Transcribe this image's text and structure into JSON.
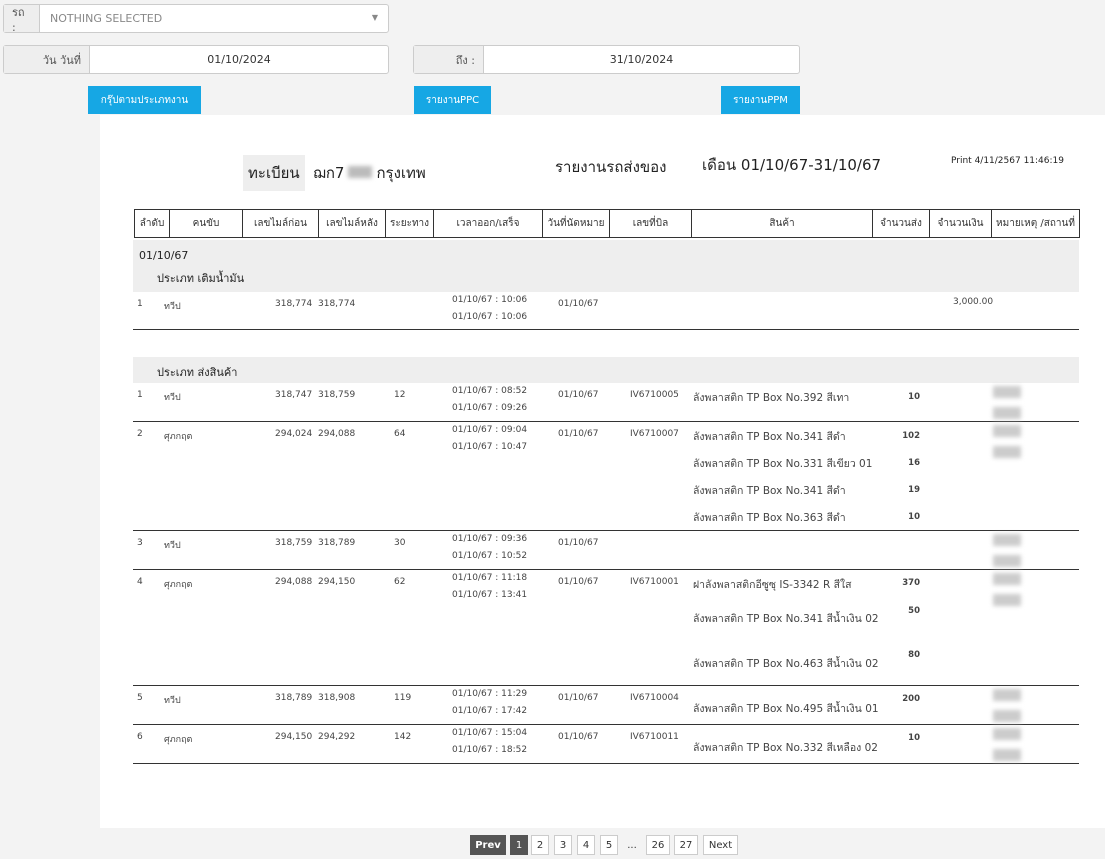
{
  "filters": {
    "car_label": "รถ :",
    "car_value": "NOTHING SELECTED",
    "from_label": "วัน วันที่",
    "from_value": "01/10/2024",
    "to_label": "ถึง :",
    "to_value": "31/10/2024"
  },
  "buttons": {
    "group": "กรุ๊ปตามประเภทงาน",
    "ppc": "รายงานPPC",
    "ppm": "รายงานPPM"
  },
  "report": {
    "reg_label": "ทะเบียน",
    "plate": "ฌก7",
    "province": "กรุงเทพ",
    "title": "รายงานรถส่งของ",
    "month": "เดือน 01/10/67-31/10/67",
    "print": "Print 4/11/2567 11:46:19",
    "columns": [
      "ลำดับ",
      "คนขับ",
      "เลขไมล์ก่อน",
      "เลขไมล์หลัง",
      "ระยะทาง",
      "เวลาออก/เสร็จ",
      "วันที่นัดหมาย",
      "เลขที่บิล",
      "สินค้า",
      "จำนวนส่ง",
      "จำนวนเงิน",
      "หมายเหตุ /สถานที่"
    ],
    "date": "01/10/67",
    "groups": [
      {
        "type": "ประเภท เติมน้ำมัน",
        "trips": [
          {
            "no": "1",
            "driver": "ทวีป",
            "mile_before": "318,774",
            "mile_after": "318,774",
            "distance": "",
            "out": "01/10/67 : 10:06",
            "done": "01/10/67 : 10:06",
            "appt": "01/10/67",
            "bill": "",
            "amount": "3,000.00",
            "items": []
          }
        ]
      },
      {
        "type": "ประเภท ส่งสินค้า",
        "trips": [
          {
            "no": "1",
            "driver": "ทวีป",
            "mile_before": "318,747",
            "mile_after": "318,759",
            "distance": "12",
            "out": "01/10/67 : 08:52",
            "done": "01/10/67 : 09:26",
            "appt": "01/10/67",
            "bill": "IV6710005",
            "amount": "",
            "items": [
              {
                "name": "ลังพลาสติก TP Box No.392 สีเทา",
                "qty": "10"
              }
            ]
          },
          {
            "no": "2",
            "driver": "ศุภกฤต",
            "mile_before": "294,024",
            "mile_after": "294,088",
            "distance": "64",
            "out": "01/10/67 : 09:04",
            "done": "01/10/67 : 10:47",
            "appt": "01/10/67",
            "bill": "IV6710007",
            "amount": "",
            "items": [
              {
                "name": "ลังพลาสติก TP Box No.341 สีดำ",
                "qty": "102"
              },
              {
                "name": "ลังพลาสติก TP Box No.331 สีเขียว 01",
                "qty": "16"
              },
              {
                "name": "ลังพลาสติก TP Box No.341 สีดำ",
                "qty": "19"
              },
              {
                "name": "ลังพลาสติก TP Box No.363 สีดำ",
                "qty": "10"
              }
            ]
          },
          {
            "no": "3",
            "driver": "ทวีป",
            "mile_before": "318,759",
            "mile_after": "318,789",
            "distance": "30",
            "out": "01/10/67 : 09:36",
            "done": "01/10/67 : 10:52",
            "appt": "01/10/67",
            "bill": "",
            "amount": "",
            "items": []
          },
          {
            "no": "4",
            "driver": "ศุภกฤต",
            "mile_before": "294,088",
            "mile_after": "294,150",
            "distance": "62",
            "out": "01/10/67 : 11:18",
            "done": "01/10/67 : 13:41",
            "appt": "01/10/67",
            "bill": "IV6710001",
            "amount": "",
            "items": [
              {
                "name": "ฝาลังพลาสติกอีซูซุ IS-3342 R สีใส",
                "qty": "370"
              },
              {
                "name": "ลังพลาสติก TP Box No.341 สีน้ำเงิน 02",
                "qty": "50"
              },
              {
                "name": "ลังพลาสติก TP Box No.463 สีน้ำเงิน 02",
                "qty": "80"
              }
            ]
          },
          {
            "no": "5",
            "driver": "ทวีป",
            "mile_before": "318,789",
            "mile_after": "318,908",
            "distance": "119",
            "out": "01/10/67 : 11:29",
            "done": "01/10/67 : 17:42",
            "appt": "01/10/67",
            "bill": "IV6710004",
            "amount": "",
            "items": [
              {
                "name": "ลังพลาสติก TP Box No.495 สีน้ำเงิน 01",
                "qty": "200"
              }
            ]
          },
          {
            "no": "6",
            "driver": "ศุภกฤต",
            "mile_before": "294,150",
            "mile_after": "294,292",
            "distance": "142",
            "out": "01/10/67 : 15:04",
            "done": "01/10/67 : 18:52",
            "appt": "01/10/67",
            "bill": "IV6710011",
            "amount": "",
            "items": [
              {
                "name": "ลังพลาสติก TP Box No.332 สีเหลือง 02",
                "qty": "10"
              }
            ]
          }
        ]
      }
    ]
  },
  "pagination": {
    "prev": "Prev",
    "pages": [
      "1",
      "2",
      "3",
      "4",
      "5",
      "...",
      "26",
      "27"
    ],
    "current": "1",
    "next": "Next"
  },
  "colors": {
    "accent": "#16a7e4"
  }
}
